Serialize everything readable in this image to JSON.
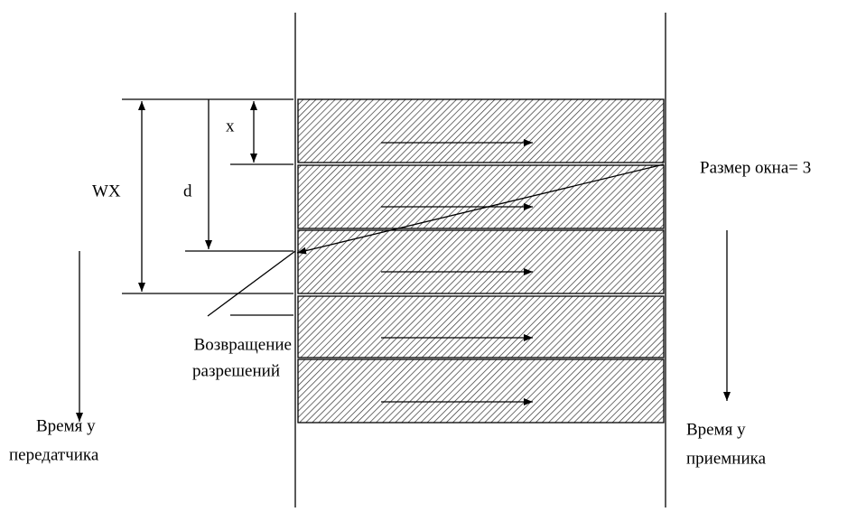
{
  "labels": {
    "x": "x",
    "d": "d",
    "wx": "WX",
    "window_size": "Размер окна= 3",
    "return_permissions": [
      "Возвращение",
      "разрешений"
    ],
    "sender_time": [
      "Время у",
      "передатчика"
    ],
    "receiver_time": [
      "Время у",
      "приемника"
    ]
  }
}
